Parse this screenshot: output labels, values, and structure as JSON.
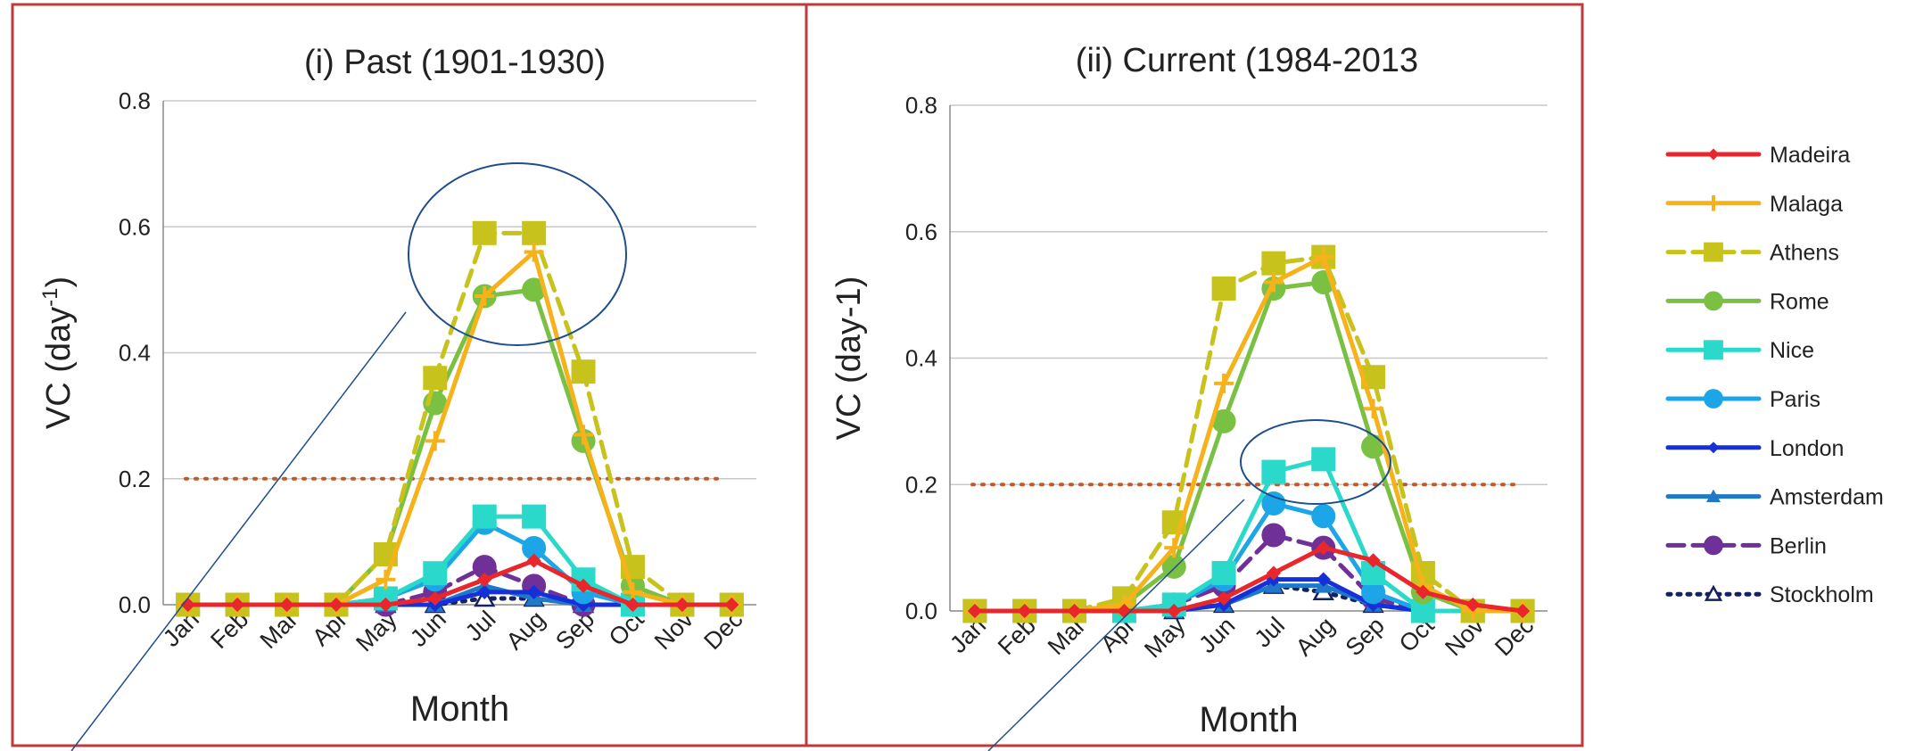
{
  "colors": {
    "frame": "#c0393b",
    "grid": "#c8c8c8",
    "axis": "#888888",
    "threshold": "#c05a28",
    "annotation": "#1f4e8c"
  },
  "axes": {
    "xlabel": "Month",
    "months": [
      "Jan",
      "Feb",
      "Mar",
      "Apr",
      "May",
      "Jun",
      "Jul",
      "Aug",
      "Sep",
      "Oct",
      "Nov",
      "Dec"
    ],
    "ylim": [
      0,
      0.8
    ],
    "yticks": [
      "0.0",
      "0.2",
      "0.4",
      "0.6",
      "0.8"
    ],
    "threshold": 0.2
  },
  "legend": [
    {
      "name": "Madeira",
      "color": "#e8262b",
      "dash": "solid",
      "marker": "diamond"
    },
    {
      "name": "Malaga",
      "color": "#f5b21b",
      "dash": "solid",
      "marker": "plus"
    },
    {
      "name": "Athens",
      "color": "#c8c21c",
      "dash": "dashed",
      "marker": "square"
    },
    {
      "name": "Rome",
      "color": "#7ac143",
      "dash": "solid",
      "marker": "circle"
    },
    {
      "name": "Nice",
      "color": "#2ad9c9",
      "dash": "solid",
      "marker": "square"
    },
    {
      "name": "Paris",
      "color": "#1ca6e8",
      "dash": "solid",
      "marker": "circle"
    },
    {
      "name": "London",
      "color": "#1530d8",
      "dash": "solid",
      "marker": "diamond"
    },
    {
      "name": "Amsterdam",
      "color": "#1f78c8",
      "dash": "solid",
      "marker": "triangle"
    },
    {
      "name": "Berlin",
      "color": "#6f3098",
      "dash": "dashed",
      "marker": "circle"
    },
    {
      "name": "Stockholm",
      "color": "#16215e",
      "dash": "dotted",
      "marker": "triangle-open"
    }
  ],
  "chart_data": [
    {
      "type": "line",
      "title": "(i)  Past (1901-1930)",
      "ylabel": "VC  (day",
      "ylabel_sup": "-1",
      "ylabel_close": ")",
      "xlabel": "Month",
      "x": [
        "Jan",
        "Feb",
        "Mar",
        "Apr",
        "May",
        "Jun",
        "Jul",
        "Aug",
        "Sep",
        "Oct",
        "Nov",
        "Dec"
      ],
      "ylim": [
        0,
        0.8
      ],
      "series": [
        {
          "name": "Madeira",
          "values": [
            0,
            0,
            0,
            0,
            0,
            0.01,
            0.04,
            0.07,
            0.03,
            0,
            0,
            0
          ]
        },
        {
          "name": "Malaga",
          "values": [
            0,
            0,
            0,
            0,
            0.04,
            0.26,
            0.49,
            0.56,
            0.27,
            0.02,
            0,
            0
          ]
        },
        {
          "name": "Athens",
          "values": [
            0,
            0,
            0,
            0,
            0.08,
            0.36,
            0.59,
            0.59,
            0.37,
            0.06,
            0,
            0
          ]
        },
        {
          "name": "Rome",
          "values": [
            0,
            0,
            0,
            0,
            0.08,
            0.32,
            0.49,
            0.5,
            0.26,
            0.03,
            0,
            0
          ]
        },
        {
          "name": "Nice",
          "values": [
            0,
            0,
            0,
            0,
            0.01,
            0.05,
            0.14,
            0.14,
            0.04,
            0,
            0,
            0
          ]
        },
        {
          "name": "Paris",
          "values": [
            0,
            0,
            0,
            0,
            0.01,
            0.04,
            0.13,
            0.09,
            0.02,
            0,
            0,
            0
          ]
        },
        {
          "name": "London",
          "values": [
            0,
            0,
            0,
            0,
            0,
            0,
            0.02,
            0.02,
            0,
            0,
            0,
            0
          ]
        },
        {
          "name": "Amsterdam",
          "values": [
            0,
            0,
            0,
            0,
            0,
            0,
            0.03,
            0.01,
            0,
            0,
            0,
            0
          ]
        },
        {
          "name": "Berlin",
          "values": [
            0,
            0,
            0,
            0,
            0,
            0.02,
            0.06,
            0.03,
            0,
            0,
            0,
            0
          ]
        },
        {
          "name": "Stockholm",
          "values": [
            0,
            0,
            0,
            0,
            0,
            0,
            0.01,
            0.01,
            0,
            0,
            0,
            0
          ]
        }
      ]
    },
    {
      "type": "line",
      "title": "(ii)  Current (1984-2013",
      "ylabel": "VC  (day-1)",
      "ylabel_sup": "",
      "ylabel_close": "",
      "xlabel": "Month",
      "x": [
        "Jan",
        "Feb",
        "Mar",
        "Apr",
        "May",
        "Jun",
        "Jul",
        "Aug",
        "Sep",
        "Oct",
        "Nov",
        "Dec"
      ],
      "ylim": [
        0,
        0.8
      ],
      "series": [
        {
          "name": "Madeira",
          "values": [
            0,
            0,
            0,
            0,
            0,
            0.02,
            0.06,
            0.1,
            0.08,
            0.03,
            0.01,
            0
          ]
        },
        {
          "name": "Malaga",
          "values": [
            0,
            0,
            0,
            0.01,
            0.1,
            0.36,
            0.52,
            0.56,
            0.32,
            0.04,
            0,
            0
          ]
        },
        {
          "name": "Athens",
          "values": [
            0,
            0,
            0,
            0.02,
            0.14,
            0.51,
            0.55,
            0.56,
            0.37,
            0.06,
            0,
            0
          ]
        },
        {
          "name": "Rome",
          "values": [
            0,
            0,
            0,
            0.01,
            0.07,
            0.3,
            0.51,
            0.52,
            0.26,
            0.03,
            0,
            0
          ]
        },
        {
          "name": "Nice",
          "values": [
            0,
            0,
            0,
            0,
            0.01,
            0.06,
            0.22,
            0.24,
            0.06,
            0,
            0,
            0
          ]
        },
        {
          "name": "Paris",
          "values": [
            0,
            0,
            0,
            0,
            0.01,
            0.05,
            0.17,
            0.15,
            0.03,
            0,
            0,
            0
          ]
        },
        {
          "name": "London",
          "values": [
            0,
            0,
            0,
            0,
            0,
            0.01,
            0.05,
            0.05,
            0.01,
            0,
            0,
            0
          ]
        },
        {
          "name": "Amsterdam",
          "values": [
            0,
            0,
            0,
            0,
            0,
            0.01,
            0.04,
            0.04,
            0.01,
            0,
            0,
            0
          ]
        },
        {
          "name": "Berlin",
          "values": [
            0,
            0,
            0,
            0,
            0.01,
            0.04,
            0.12,
            0.1,
            0.02,
            0,
            0,
            0
          ]
        },
        {
          "name": "Stockholm",
          "values": [
            0,
            0,
            0,
            0,
            0,
            0.01,
            0.04,
            0.03,
            0.01,
            0,
            0,
            0
          ]
        }
      ]
    }
  ]
}
